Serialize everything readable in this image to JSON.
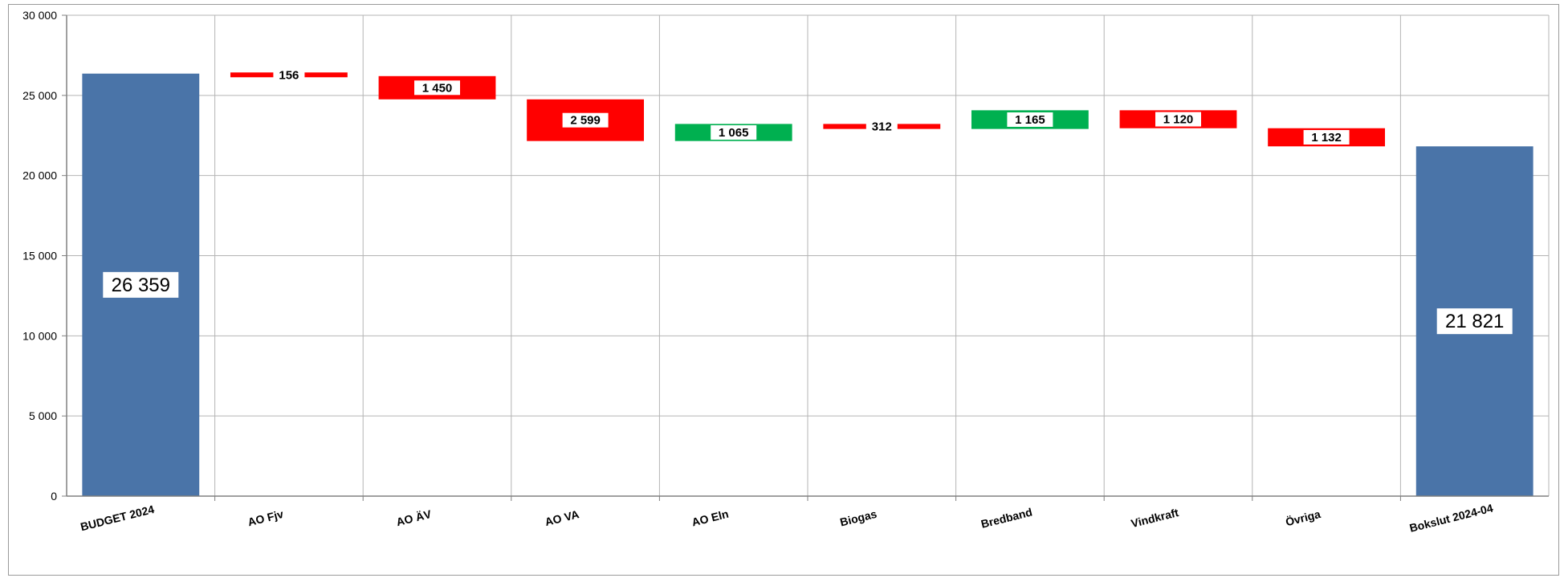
{
  "chart_data": {
    "type": "bar",
    "subtype": "waterfall",
    "title": "",
    "xlabel": "",
    "ylabel": "",
    "ylim": [
      0,
      30000
    ],
    "yticks": [
      0,
      5000,
      10000,
      15000,
      20000,
      25000,
      30000
    ],
    "ytick_labels": [
      "0",
      "5 000",
      "10 000",
      "15 000",
      "20 000",
      "25 000",
      "30 000"
    ],
    "grid": true,
    "categories": [
      "BUDGET 2024",
      "AO Fjv",
      "AO ÄV",
      "AO VA",
      "AO Eln",
      "Biogas",
      "Bredband",
      "Vindkraft",
      "Övriga",
      "Bokslut 2024-04"
    ],
    "bars": [
      {
        "kind": "total",
        "start": 0,
        "end": 26359,
        "label": "26 359"
      },
      {
        "kind": "decrease",
        "start": 26359,
        "end": 26203,
        "label": "156"
      },
      {
        "kind": "decrease",
        "start": 26203,
        "end": 24753,
        "label": "1 450"
      },
      {
        "kind": "decrease",
        "start": 24753,
        "end": 22154,
        "label": "2 599"
      },
      {
        "kind": "increase",
        "start": 22154,
        "end": 23219,
        "label": "1 065"
      },
      {
        "kind": "decrease",
        "start": 23219,
        "end": 22907,
        "label": "312"
      },
      {
        "kind": "increase",
        "start": 22907,
        "end": 24072,
        "label": "1 165"
      },
      {
        "kind": "decrease",
        "start": 24072,
        "end": 22952,
        "label": "1 120"
      },
      {
        "kind": "decrease",
        "start": 22952,
        "end": 21821,
        "label": "1 132"
      },
      {
        "kind": "total",
        "start": 0,
        "end": 21821,
        "label": "21 821"
      }
    ],
    "colors": {
      "total": "#4a74a8",
      "increase": "#00b050",
      "decrease": "#ff0000",
      "grid": "#b4b4b4",
      "axis": "#808080"
    }
  }
}
